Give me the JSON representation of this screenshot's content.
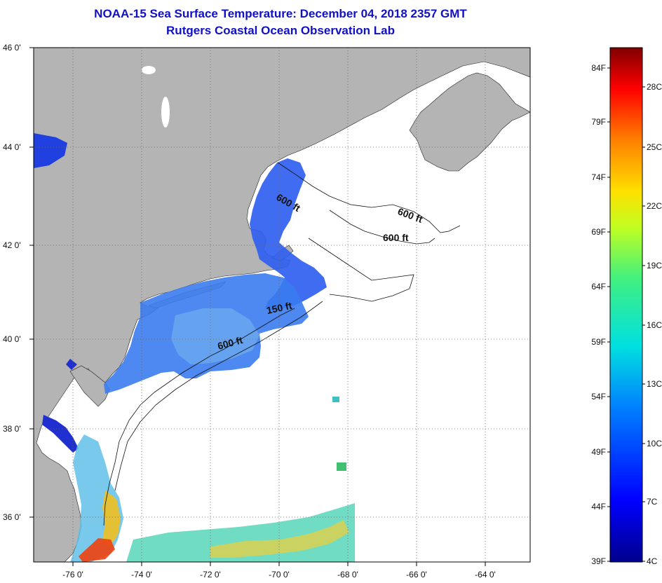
{
  "header": {
    "title": "NOAA-15 Sea Surface Temperature:  December 04, 2018 2357 GMT",
    "subtitle": "Rutgers Coastal Ocean Observation Lab"
  },
  "map": {
    "lat_labels": [
      "46 0'",
      "44 0'",
      "42 0'",
      "40 0'",
      "38 0'",
      "36 0'"
    ],
    "lon_labels": [
      "-76 0'",
      "-74 0'",
      "-72 0'",
      "-70 0'",
      "-68 0'",
      "-66 0'",
      "-64 0'"
    ],
    "contour_labels": [
      "600 ft",
      "600 ft",
      "600 ft",
      "150 ft",
      "600 ft"
    ],
    "land_color": "#b4b4b4",
    "ocean_color": "#ffffff"
  },
  "colorbar": {
    "fahrenheit_labels": [
      "84F",
      "79F",
      "74F",
      "69F",
      "64F",
      "59F",
      "54F",
      "49F",
      "44F",
      "39F"
    ],
    "celsius_labels": [
      "28C",
      "25C",
      "22C",
      "19C",
      "16C",
      "13C",
      "10C",
      "7C",
      "4C"
    ],
    "colors": [
      "#00008c",
      "#0000ff",
      "#0080ff",
      "#00e0e0",
      "#40f080",
      "#c0ff20",
      "#ffe000",
      "#ff8000",
      "#ff0000",
      "#800000"
    ]
  }
}
